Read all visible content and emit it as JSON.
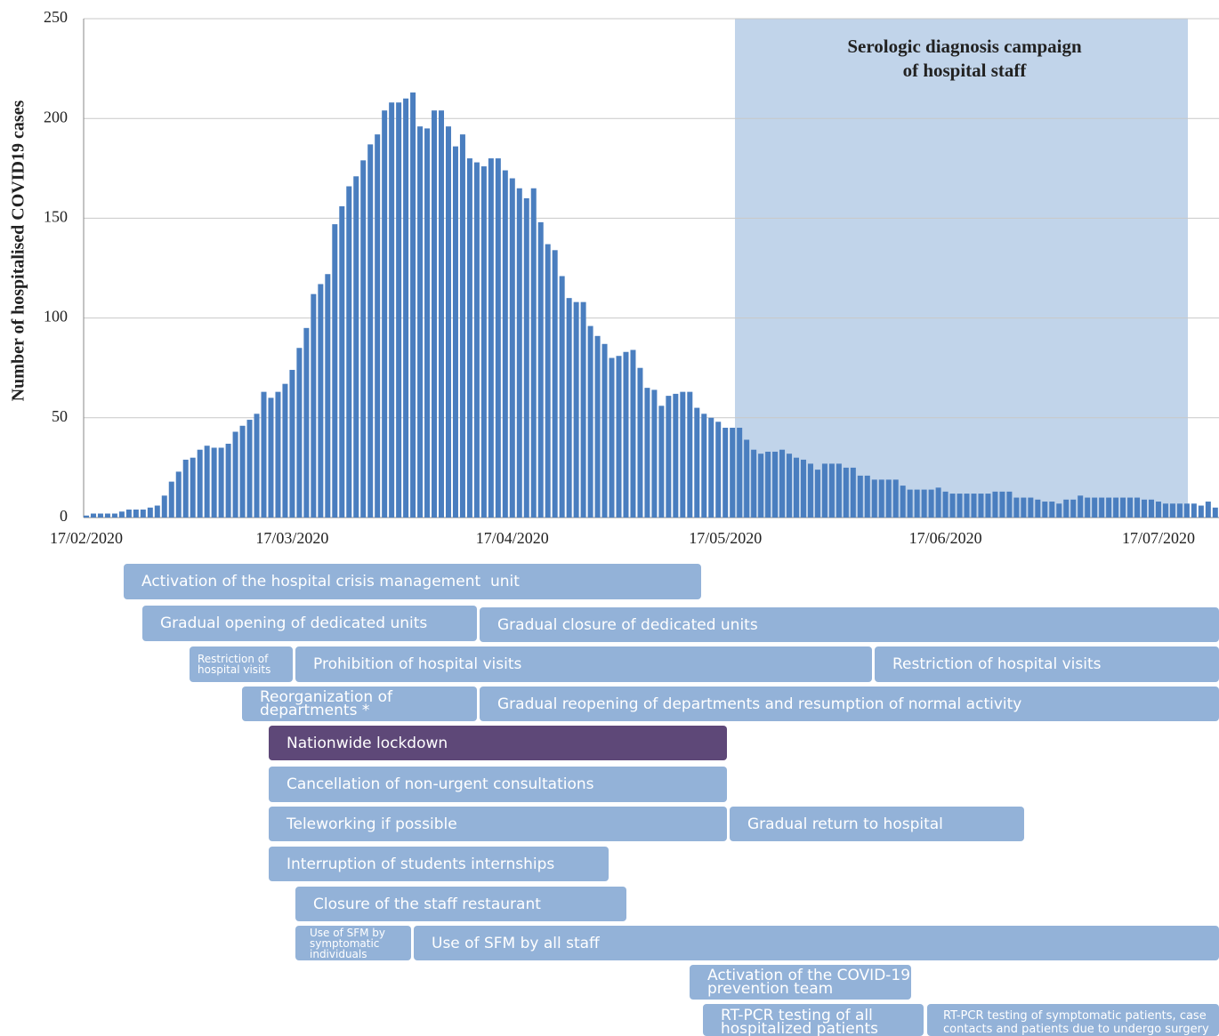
{
  "chart_data": {
    "type": "bar",
    "y_label": "Number of hospitalised COVID19 cases",
    "color": "#4a7ebf",
    "grid": true,
    "ylim": [
      0,
      250
    ],
    "yticks": [
      0,
      50,
      100,
      150,
      200,
      250
    ],
    "categories": [
      "17/02/2020",
      null,
      null,
      null,
      null,
      null,
      null,
      null,
      null,
      null,
      null,
      null,
      null,
      null,
      null,
      null,
      null,
      null,
      null,
      null,
      null,
      null,
      null,
      null,
      null,
      null,
      null,
      null,
      null,
      "17/03/2020",
      null,
      null,
      null,
      null,
      null,
      null,
      null,
      null,
      null,
      null,
      null,
      null,
      null,
      null,
      null,
      null,
      null,
      null,
      null,
      null,
      null,
      null,
      null,
      null,
      null,
      null,
      null,
      null,
      null,
      null,
      "17/04/2020",
      null,
      null,
      null,
      null,
      null,
      null,
      null,
      null,
      null,
      null,
      null,
      null,
      null,
      null,
      null,
      null,
      null,
      null,
      null,
      null,
      null,
      null,
      null,
      null,
      null,
      null,
      null,
      null,
      null,
      "17/05/2020",
      null,
      null,
      null,
      null,
      null,
      null,
      null,
      null,
      null,
      null,
      null,
      null,
      null,
      null,
      null,
      null,
      null,
      null,
      null,
      null,
      null,
      null,
      null,
      null,
      null,
      null,
      null,
      null,
      null,
      null,
      "17/06/2020",
      null,
      null,
      null,
      null,
      null,
      null,
      null,
      null,
      null,
      null,
      null,
      null,
      null,
      null,
      null,
      null,
      null,
      null,
      null,
      null,
      null,
      null,
      null,
      null,
      null,
      null,
      null,
      null,
      null,
      "17/07/2020",
      null,
      null,
      null,
      null,
      null,
      null,
      null,
      null
    ],
    "values": [
      1,
      2,
      2,
      2,
      2,
      3,
      4,
      4,
      4,
      5,
      6,
      11,
      18,
      23,
      29,
      30,
      34,
      36,
      35,
      35,
      37,
      43,
      46,
      49,
      52,
      63,
      60,
      63,
      67,
      74,
      85,
      95,
      112,
      117,
      122,
      147,
      156,
      166,
      171,
      179,
      187,
      192,
      204,
      208,
      208,
      210,
      213,
      196,
      195,
      204,
      204,
      196,
      186,
      192,
      180,
      178,
      176,
      180,
      180,
      174,
      170,
      165,
      160,
      165,
      148,
      137,
      134,
      121,
      110,
      108,
      108,
      96,
      91,
      87,
      80,
      81,
      83,
      84,
      75,
      65,
      64,
      56,
      61,
      62,
      63,
      63,
      55,
      52,
      50,
      48,
      45,
      45,
      45,
      39,
      34,
      32,
      33,
      33,
      34,
      32,
      30,
      29,
      27,
      24,
      27,
      27,
      27,
      25,
      25,
      21,
      21,
      19,
      19,
      19,
      19,
      16,
      14,
      14,
      14,
      14,
      15,
      13,
      12,
      12,
      12,
      12,
      12,
      12,
      13,
      13,
      13,
      10,
      10,
      10,
      9,
      8,
      8,
      7,
      9,
      9,
      11,
      10,
      10,
      10,
      10,
      10,
      10,
      10,
      10,
      9,
      9,
      8,
      7,
      7,
      7,
      7,
      7,
      6,
      8,
      5
    ],
    "annotation": [
      "Serologic diagnosis campaign",
      "of hospital staff"
    ]
  },
  "timeline": [
    "Activation of the hospital crisis management  unit",
    "Gradual opening of dedicated units",
    "Gradual closure of dedicated units",
    "Restriction of hospital visits",
    "Prohibition of hospital visits",
    "Restriction of hospital visits",
    "Reorganization of departments *",
    "Gradual reopening of departments and resumption of normal activity",
    "Nationwide lockdown",
    "Cancellation of non-urgent consultations",
    "Teleworking if possible",
    "Gradual return to hospital",
    "Interruption of students internships",
    "Closure of the staff restaurant",
    "Use of SFM by symptomatic individuals",
    "Use of SFM by all staff",
    "Activation of the COVID-19 prevention team",
    "RT-PCR testing of all hospitalized patients",
    "RT-PCR testing of symptomatic patients, case contacts and patients due to undergo surgery"
  ]
}
